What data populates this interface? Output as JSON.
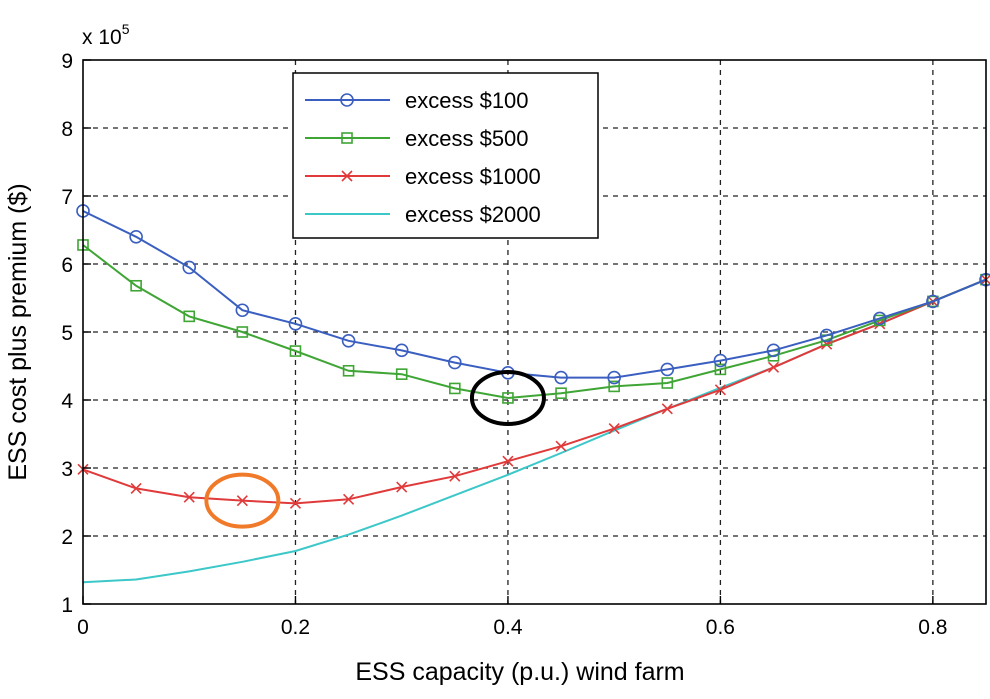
{
  "chart_data": {
    "type": "line",
    "xlabel": "ESS capacity (p.u.) wind farm",
    "ylabel": "ESS cost plus premium ($)",
    "y_multiplier_label": "x 10",
    "y_multiplier_exponent": "5",
    "xlim": [
      0,
      0.85
    ],
    "ylim": [
      1,
      9
    ],
    "x_ticks": [
      0,
      0.2,
      0.4,
      0.6,
      0.8
    ],
    "x_tick_labels": [
      "0",
      "0.2",
      "0.4",
      "0.6",
      "0.8"
    ],
    "y_ticks": [
      1,
      2,
      3,
      4,
      5,
      6,
      7,
      8,
      9
    ],
    "y_tick_labels": [
      "1",
      "2",
      "3",
      "4",
      "5",
      "6",
      "7",
      "8",
      "9"
    ],
    "grid": true,
    "legend_position": "top-center",
    "series": [
      {
        "name": "excess $100",
        "color": "#3b5fc0",
        "marker": "circle",
        "x": [
          0,
          0.05,
          0.1,
          0.15,
          0.2,
          0.25,
          0.3,
          0.35,
          0.4,
          0.45,
          0.5,
          0.55,
          0.6,
          0.65,
          0.7,
          0.75,
          0.8,
          0.85
        ],
        "y": [
          6.78,
          6.4,
          5.95,
          5.32,
          5.12,
          4.87,
          4.73,
          4.55,
          4.4,
          4.33,
          4.33,
          4.45,
          4.58,
          4.73,
          4.95,
          5.2,
          5.45,
          5.77
        ]
      },
      {
        "name": "excess $500",
        "color": "#3fa535",
        "marker": "square",
        "x": [
          0,
          0.05,
          0.1,
          0.15,
          0.2,
          0.25,
          0.3,
          0.35,
          0.4,
          0.45,
          0.5,
          0.55,
          0.6,
          0.65,
          0.7,
          0.75,
          0.8,
          0.85
        ],
        "y": [
          6.28,
          5.68,
          5.23,
          5.0,
          4.72,
          4.43,
          4.38,
          4.17,
          4.03,
          4.1,
          4.2,
          4.25,
          4.45,
          4.65,
          4.88,
          5.17,
          5.45,
          5.77
        ]
      },
      {
        "name": "excess $1000",
        "color": "#e03a3a",
        "marker": "x",
        "x": [
          0,
          0.05,
          0.1,
          0.15,
          0.2,
          0.25,
          0.3,
          0.35,
          0.4,
          0.45,
          0.5,
          0.55,
          0.6,
          0.65,
          0.7,
          0.75,
          0.8,
          0.85
        ],
        "y": [
          2.98,
          2.7,
          2.57,
          2.52,
          2.48,
          2.54,
          2.72,
          2.88,
          3.1,
          3.32,
          3.58,
          3.87,
          4.15,
          4.48,
          4.82,
          5.12,
          5.45,
          5.77
        ]
      },
      {
        "name": "excess $2000",
        "color": "#3cc7c9",
        "marker": "none",
        "x": [
          0,
          0.05,
          0.1,
          0.15,
          0.2,
          0.25,
          0.3,
          0.35,
          0.4,
          0.45,
          0.5,
          0.55,
          0.6,
          0.65,
          0.7,
          0.75,
          0.8,
          0.85
        ],
        "y": [
          1.32,
          1.36,
          1.48,
          1.62,
          1.78,
          2.02,
          2.3,
          2.6,
          2.9,
          3.22,
          3.55,
          3.87,
          4.18,
          4.48,
          4.82,
          5.12,
          5.45,
          5.77
        ]
      }
    ],
    "annotations": [
      {
        "type": "ellipse",
        "color": "#000000",
        "cx": 0.4,
        "cy": 4.03
      },
      {
        "type": "ellipse",
        "color": "#f07a2a",
        "cx": 0.15,
        "cy": 2.52
      }
    ]
  }
}
